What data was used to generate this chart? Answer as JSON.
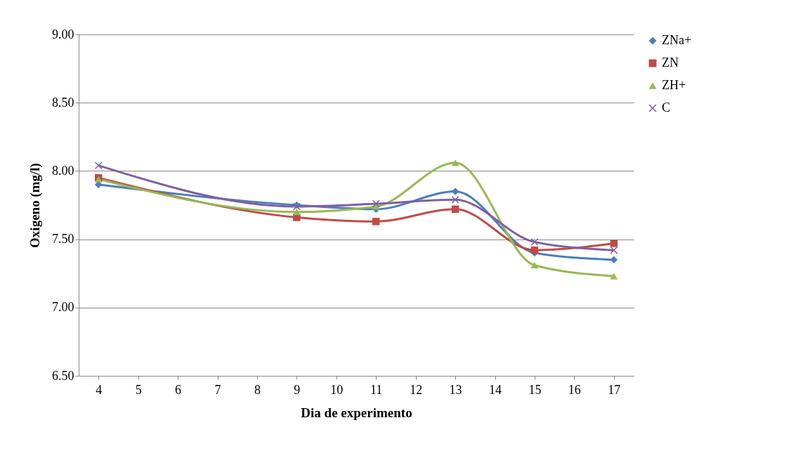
{
  "chart_data": {
    "type": "line",
    "xlabel": "Dia de experimento",
    "ylabel": "Oxigeno (mg/l)",
    "categories": [
      "4",
      "5",
      "6",
      "7",
      "8",
      "9",
      "10",
      "11",
      "12",
      "13",
      "14",
      "15",
      "16",
      "17"
    ],
    "series": [
      {
        "name": "ZNa+",
        "color": "#4a7ebb",
        "marker": "diamond",
        "values": [
          7.9,
          null,
          null,
          null,
          null,
          7.75,
          null,
          7.72,
          null,
          7.85,
          null,
          7.4,
          null,
          7.35
        ]
      },
      {
        "name": "ZN",
        "color": "#be4b48",
        "marker": "square",
        "values": [
          7.95,
          null,
          null,
          null,
          null,
          7.66,
          null,
          7.63,
          null,
          7.72,
          null,
          7.42,
          null,
          7.47
        ]
      },
      {
        "name": "ZH+",
        "color": "#98b954",
        "marker": "triangle",
        "values": [
          7.94,
          null,
          null,
          null,
          null,
          7.7,
          null,
          7.74,
          null,
          8.06,
          null,
          7.31,
          null,
          7.23
        ]
      },
      {
        "name": "C",
        "color": "#7d60a0",
        "marker": "cross",
        "values": [
          8.04,
          null,
          null,
          null,
          null,
          7.74,
          null,
          7.76,
          null,
          7.79,
          null,
          7.48,
          null,
          7.42
        ]
      }
    ],
    "ylim": [
      6.5,
      9.0
    ],
    "yticks": [
      {
        "value": 6.5,
        "label": "6.50"
      },
      {
        "value": 7.0,
        "label": "7.00"
      },
      {
        "value": 7.5,
        "label": "7.50"
      },
      {
        "value": 8.0,
        "label": "8.00"
      },
      {
        "value": 8.5,
        "label": "8.50"
      },
      {
        "value": 9.0,
        "label": "9.00"
      }
    ],
    "grid": "y",
    "legend": "right"
  }
}
